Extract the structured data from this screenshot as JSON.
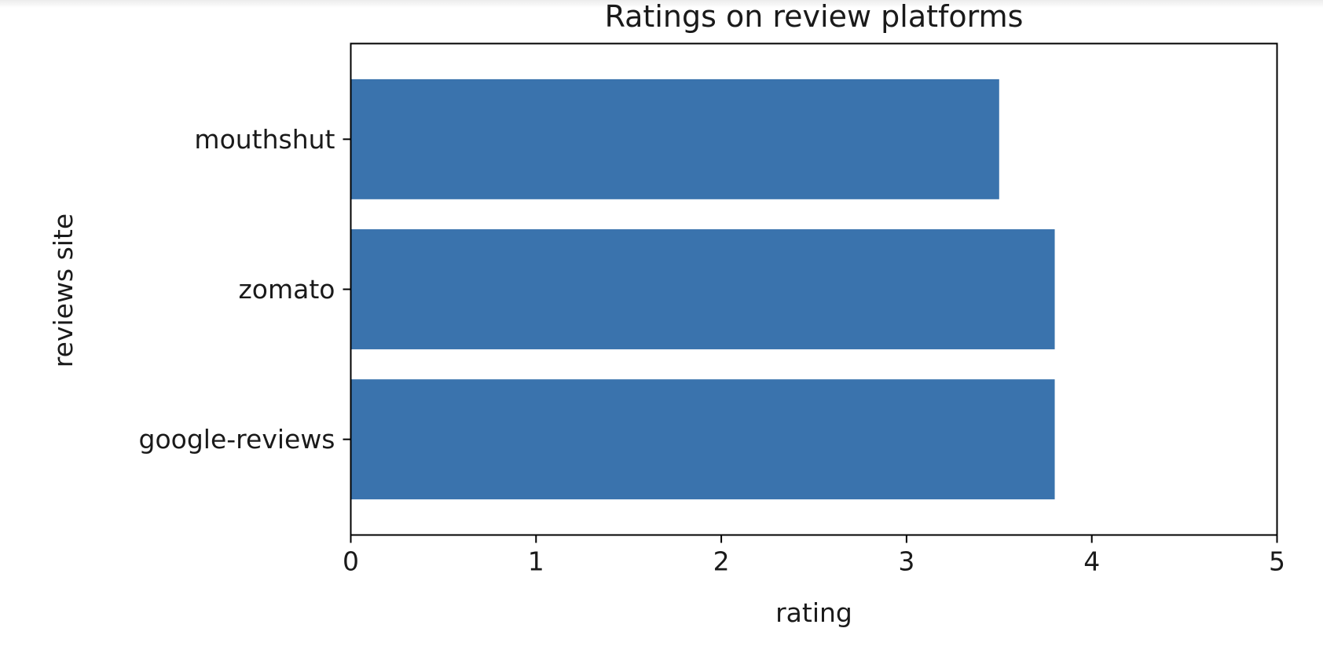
{
  "chart_data": {
    "type": "bar",
    "orientation": "horizontal",
    "title": "Ratings on review platforms",
    "xlabel": "rating",
    "ylabel": "reviews site",
    "categories": [
      "google-reviews",
      "zomato",
      "mouthshut"
    ],
    "values": [
      3.8,
      3.8,
      3.5
    ],
    "xlim": [
      0,
      5
    ],
    "xticks": [
      "0",
      "1",
      "2",
      "3",
      "4",
      "5"
    ],
    "grid": false,
    "legend": "none",
    "bar_color": "#3a73ad"
  }
}
